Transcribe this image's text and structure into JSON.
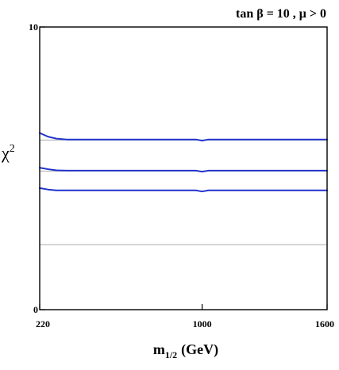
{
  "chart_data": {
    "type": "line",
    "title": "tan β = 10 ,  μ > 0",
    "xlabel_main": "m",
    "xlabel_sub": "1/2",
    "xlabel_unit": "(GeV)",
    "ylabel_main": "χ",
    "ylabel_sup": "2",
    "xlim": [
      220,
      1600
    ],
    "ylim": [
      0,
      10
    ],
    "x_ticks": [
      220,
      1000,
      1600
    ],
    "y_ticks": [
      0,
      10
    ],
    "reference_lines": [
      2.3,
      4.9,
      6.0
    ],
    "line_color": "#2233cc",
    "ref_color": "#aaaaaa",
    "series": [
      {
        "x": [
          220,
          260,
          300,
          350,
          400,
          500,
          700,
          900,
          970,
          1000,
          1030,
          1100,
          1300,
          1600
        ],
        "y": [
          6.25,
          6.12,
          6.05,
          6.02,
          6.02,
          6.02,
          6.02,
          6.02,
          6.02,
          5.98,
          6.02,
          6.02,
          6.02,
          6.02
        ]
      },
      {
        "x": [
          220,
          260,
          300,
          350,
          400,
          500,
          700,
          900,
          970,
          1000,
          1030,
          1100,
          1300,
          1600
        ],
        "y": [
          5.02,
          4.97,
          4.93,
          4.92,
          4.92,
          4.92,
          4.92,
          4.92,
          4.92,
          4.88,
          4.92,
          4.92,
          4.92,
          4.92
        ]
      },
      {
        "x": [
          220,
          260,
          300,
          350,
          400,
          500,
          700,
          900,
          970,
          1000,
          1030,
          1100,
          1300,
          1600
        ],
        "y": [
          4.3,
          4.25,
          4.22,
          4.22,
          4.22,
          4.22,
          4.22,
          4.22,
          4.22,
          4.18,
          4.22,
          4.22,
          4.22,
          4.22
        ]
      }
    ]
  }
}
